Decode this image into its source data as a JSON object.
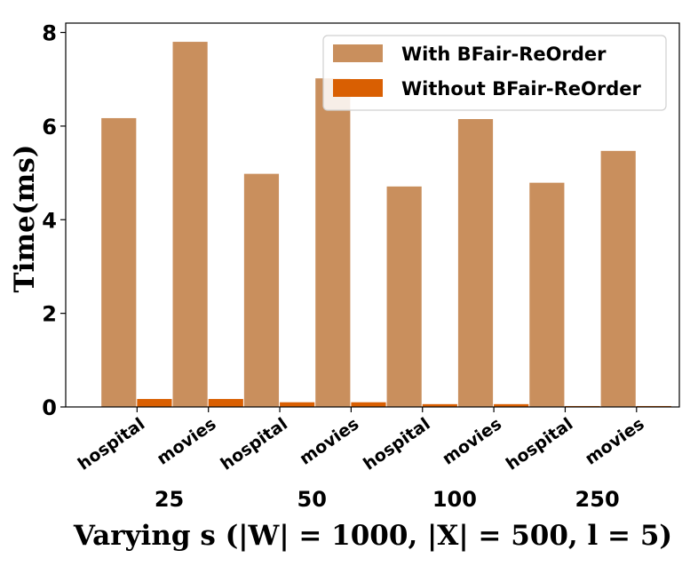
{
  "chart_data": {
    "type": "bar",
    "ylabel": "Time(ms)",
    "xlabel": "Varying s (|W| = 1000, |X| = 500, l = 5)",
    "ylim": [
      0,
      8.2
    ],
    "yticks": [
      "0",
      "2",
      "4",
      "6",
      "8"
    ],
    "groups": [
      "25",
      "50",
      "100",
      "250"
    ],
    "categories": [
      "hospital",
      "movies",
      "hospital",
      "movies",
      "hospital",
      "movies",
      "hospital",
      "movies"
    ],
    "series": [
      {
        "name": "With BFair-ReOrder",
        "color": "#c98f5d",
        "values": [
          6.17,
          7.8,
          4.98,
          7.02,
          4.71,
          6.15,
          4.79,
          5.47
        ]
      },
      {
        "name": "Without BFair-ReOrder",
        "color": "#d95f02",
        "values": [
          0.17,
          0.17,
          0.1,
          0.1,
          0.06,
          0.06,
          0.02,
          0.02
        ]
      }
    ],
    "legend": "top-right",
    "grid": false
  }
}
